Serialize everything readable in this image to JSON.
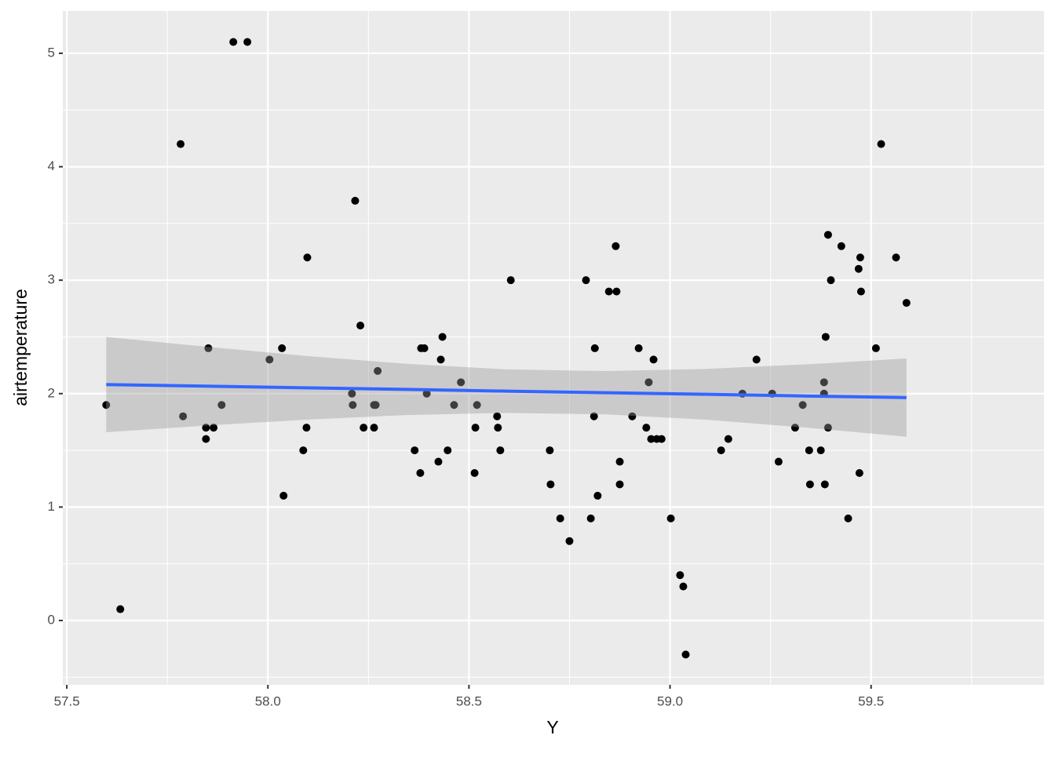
{
  "chart_data": {
    "type": "scatter",
    "x_label": "Y",
    "y_label": "airtemperature",
    "color": "#000000",
    "background": "#ebebeb",
    "grid": true,
    "xlim": [
      57.49,
      59.93
    ],
    "ylim": [
      -0.567,
      5.373
    ],
    "xticks": [
      57.5,
      {
        "value": 58.0,
        "label": "58.0"
      },
      58.5,
      {
        "value": 59.0,
        "label": "59.0"
      },
      59.5
    ],
    "yticks": [
      0,
      1,
      2,
      3,
      4,
      5
    ],
    "x_minor_ticks": [
      57.75,
      58.25,
      58.75,
      59.25,
      59.75
    ],
    "y_minor_ticks": [
      -0.5,
      0.5,
      1.5,
      2.5,
      3.5,
      4.5
    ],
    "x": [
      57.598,
      57.633,
      57.783,
      57.789,
      57.846,
      57.846,
      57.852,
      57.865,
      57.885,
      57.914,
      57.949,
      58.004,
      58.035,
      58.039,
      58.088,
      58.096,
      58.098,
      58.209,
      58.211,
      58.217,
      58.23,
      58.238,
      58.264,
      58.268,
      58.264,
      58.273,
      58.365,
      58.379,
      58.381,
      58.389,
      58.395,
      58.424,
      58.43,
      58.434,
      58.447,
      58.463,
      58.48,
      58.514,
      58.516,
      58.52,
      58.57,
      58.572,
      58.578,
      58.604,
      58.701,
      58.703,
      58.727,
      58.75,
      58.791,
      58.803,
      58.811,
      58.813,
      58.82,
      58.848,
      58.865,
      58.867,
      58.875,
      58.875,
      58.906,
      58.922,
      58.941,
      58.947,
      58.953,
      58.959,
      58.967,
      58.979,
      59.002,
      59.025,
      59.033,
      59.039,
      59.127,
      59.145,
      59.18,
      59.215,
      59.254,
      59.27,
      59.311,
      59.33,
      59.346,
      59.348,
      59.375,
      59.383,
      59.383,
      59.385,
      59.387,
      59.393,
      59.393,
      59.4,
      59.426,
      59.443,
      59.469,
      59.471,
      59.473,
      59.475,
      59.512,
      59.525,
      59.562,
      59.588
    ],
    "values": [
      1.9,
      0.1,
      4.2,
      1.8,
      1.7,
      1.6,
      2.4,
      1.7,
      1.9,
      5.1,
      5.1,
      2.3,
      2.4,
      1.1,
      1.5,
      1.7,
      3.2,
      2.0,
      1.9,
      3.7,
      2.6,
      1.7,
      1.9,
      1.9,
      1.7,
      2.2,
      1.5,
      1.3,
      2.4,
      2.4,
      2.0,
      1.4,
      2.3,
      2.5,
      1.5,
      1.9,
      2.1,
      1.3,
      1.7,
      1.9,
      1.8,
      1.7,
      1.5,
      3.0,
      1.5,
      1.2,
      0.9,
      0.7,
      3.0,
      0.9,
      1.8,
      2.4,
      1.1,
      2.9,
      3.3,
      2.9,
      1.4,
      1.2,
      1.8,
      2.4,
      1.7,
      2.1,
      1.6,
      2.3,
      1.6,
      1.6,
      0.9,
      0.4,
      0.3,
      -0.3,
      1.5,
      1.6,
      2.0,
      2.3,
      2.0,
      1.4,
      1.7,
      1.9,
      1.5,
      1.2,
      1.5,
      2.0,
      2.1,
      1.2,
      2.5,
      1.7,
      3.4,
      3.0,
      3.3,
      0.9,
      3.1,
      1.3,
      3.2,
      2.9,
      2.4,
      4.2,
      3.2,
      2.8
    ],
    "smooth": {
      "color": "#3366ff",
      "band_color": "#999999",
      "band_alpha": 0.4,
      "x": [
        57.598,
        57.847,
        58.095,
        58.344,
        58.593,
        58.842,
        59.09,
        59.339,
        59.588
      ],
      "fit": [
        2.08,
        2.066,
        2.051,
        2.037,
        2.022,
        2.008,
        1.994,
        1.979,
        1.965
      ],
      "lower": [
        1.66,
        1.719,
        1.77,
        1.811,
        1.83,
        1.817,
        1.77,
        1.7,
        1.62
      ],
      "upper": [
        2.5,
        2.413,
        2.332,
        2.263,
        2.214,
        2.199,
        2.218,
        2.258,
        2.31
      ]
    }
  }
}
